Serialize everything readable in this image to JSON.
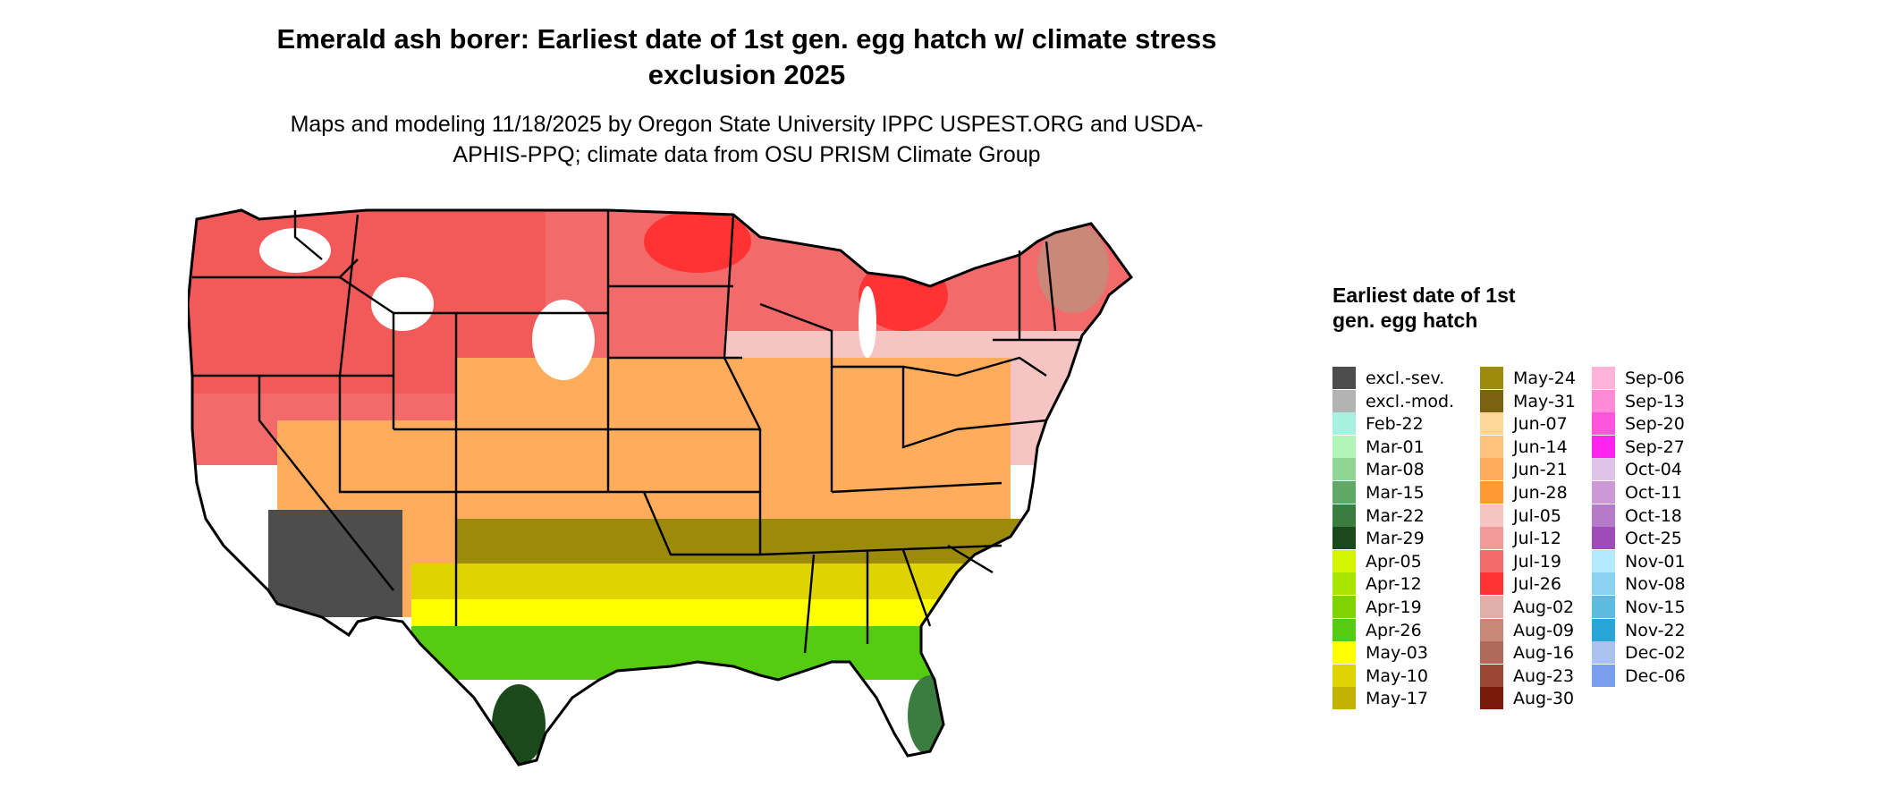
{
  "title": "Emerald ash borer: Earliest date of 1st gen. egg hatch w/ climate stress exclusion 2025",
  "subtitle": "Maps and modeling 11/18/2025 by Oregon State University IPPC USPEST.ORG and USDA-APHIS-PPQ; climate data from OSU PRISM Climate Group",
  "legend": {
    "title": "Earliest date of 1st gen. egg hatch",
    "items": [
      {
        "label": "excl.-sev.",
        "color": "#4d4d4d"
      },
      {
        "label": "excl.-mod.",
        "color": "#b3b3b3"
      },
      {
        "label": "Feb-22",
        "color": "#a8f0e0"
      },
      {
        "label": "Mar-01",
        "color": "#b3f5b8"
      },
      {
        "label": "Mar-08",
        "color": "#8fd694"
      },
      {
        "label": "Mar-15",
        "color": "#5fa865"
      },
      {
        "label": "Mar-22",
        "color": "#3a7d3e"
      },
      {
        "label": "Mar-29",
        "color": "#1a4a1c"
      },
      {
        "label": "Apr-05",
        "color": "#d4f500"
      },
      {
        "label": "Apr-12",
        "color": "#a8e600"
      },
      {
        "label": "Apr-19",
        "color": "#7fd400"
      },
      {
        "label": "Apr-26",
        "color": "#55cc11"
      },
      {
        "label": "May-03",
        "color": "#ffff00"
      },
      {
        "label": "May-10",
        "color": "#e0d400"
      },
      {
        "label": "May-17",
        "color": "#c2b300"
      },
      {
        "label": "May-24",
        "color": "#9c8a0a"
      },
      {
        "label": "May-31",
        "color": "#7a6210"
      },
      {
        "label": "Jun-07",
        "color": "#ffd699"
      },
      {
        "label": "Jun-14",
        "color": "#ffc27a"
      },
      {
        "label": "Jun-21",
        "color": "#ffad5c"
      },
      {
        "label": "Jun-28",
        "color": "#ff9933"
      },
      {
        "label": "Jul-05",
        "color": "#f7c4c4"
      },
      {
        "label": "Jul-12",
        "color": "#f29a9a"
      },
      {
        "label": "Jul-19",
        "color": "#f26a6a"
      },
      {
        "label": "Jul-26",
        "color": "#ff3333"
      },
      {
        "label": "Aug-02",
        "color": "#e0b0a8"
      },
      {
        "label": "Aug-09",
        "color": "#c98878"
      },
      {
        "label": "Aug-16",
        "color": "#b06a5a"
      },
      {
        "label": "Aug-23",
        "color": "#9a4535"
      },
      {
        "label": "Aug-30",
        "color": "#7a1a0a"
      },
      {
        "label": "Sep-06",
        "color": "#ffb3d9"
      },
      {
        "label": "Sep-13",
        "color": "#ff8ad6"
      },
      {
        "label": "Sep-20",
        "color": "#ff55dd"
      },
      {
        "label": "Sep-27",
        "color": "#ff22ee"
      },
      {
        "label": "Oct-04",
        "color": "#e0c4e8"
      },
      {
        "label": "Oct-11",
        "color": "#cc99d6"
      },
      {
        "label": "Oct-18",
        "color": "#b57ac9"
      },
      {
        "label": "Oct-25",
        "color": "#9e4cb8"
      },
      {
        "label": "Nov-01",
        "color": "#b3eaff"
      },
      {
        "label": "Nov-08",
        "color": "#8ad2f0"
      },
      {
        "label": "Nov-15",
        "color": "#5cbce0"
      },
      {
        "label": "Nov-22",
        "color": "#2aa6d6"
      },
      {
        "label": "Dec-02",
        "color": "#a8c4ee"
      },
      {
        "label": "Dec-06",
        "color": "#7a9eee"
      }
    ]
  }
}
